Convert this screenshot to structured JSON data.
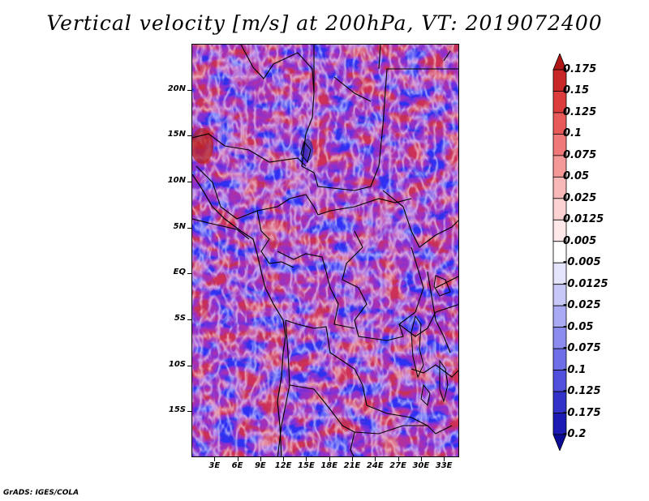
{
  "title": "Vertical velocity [m/s] at 200hPa, VT: 2019072400",
  "credit": "GrADS: IGES/COLA",
  "map": {
    "lon_range": [
      0,
      35
    ],
    "lat_range": [
      -20,
      25
    ],
    "lat_ticks": [
      {
        "value": 20,
        "label": "20N"
      },
      {
        "value": 15,
        "label": "15N"
      },
      {
        "value": 10,
        "label": "10N"
      },
      {
        "value": 5,
        "label": "5N"
      },
      {
        "value": 0,
        "label": "EQ"
      },
      {
        "value": -5,
        "label": "5S"
      },
      {
        "value": -10,
        "label": "10S"
      },
      {
        "value": -15,
        "label": "15S"
      }
    ],
    "lon_ticks": [
      {
        "value": 3,
        "label": "3E"
      },
      {
        "value": 6,
        "label": "6E"
      },
      {
        "value": 9,
        "label": "9E"
      },
      {
        "value": 12,
        "label": "12E"
      },
      {
        "value": 15,
        "label": "15E"
      },
      {
        "value": 18,
        "label": "18E"
      },
      {
        "value": 21,
        "label": "21E"
      },
      {
        "value": 24,
        "label": "24E"
      },
      {
        "value": 27,
        "label": "27E"
      },
      {
        "value": 30,
        "label": "30E"
      },
      {
        "value": 33,
        "label": "33E"
      }
    ]
  },
  "colorbar": {
    "labels": [
      "0.175",
      "0.15",
      "0.125",
      "0.1",
      "0.075",
      "0.05",
      "0.025",
      "0.0125",
      "0.005",
      "-0.005",
      "-0.0125",
      "-0.025",
      "-0.05",
      "-0.075",
      "-0.1",
      "-0.125",
      "-0.175",
      "-0.2"
    ],
    "colors": [
      "#b01818",
      "#c82828",
      "#dc3c3c",
      "#e85a5a",
      "#f07878",
      "#f49898",
      "#f8b8b8",
      "#fcd2d2",
      "#fee8e8",
      "#ffffff",
      "#e4e4fc",
      "#c8c8f8",
      "#aaaaf4",
      "#8c8cf0",
      "#6e6ee8",
      "#5050dc",
      "#3232c8",
      "#1c1cb4",
      "#0c0c96"
    ]
  }
}
